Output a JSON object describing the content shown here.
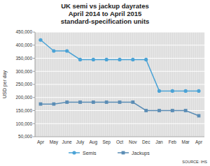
{
  "chart_data": {
    "type": "line",
    "title": "UK semi vs jackup dayrates",
    "subtitle": [
      "April 2014 to April 2015",
      "standard-specification units"
    ],
    "y_label": "USD per day",
    "annotations": [
      "SOURCE: IHS"
    ],
    "categories": [
      "Apr",
      "May",
      "June",
      "July",
      "Aug",
      "Sep",
      "Oct",
      "Nov",
      "Dec",
      "Jan",
      "Feb",
      "Mar",
      "Apr"
    ],
    "series": [
      {
        "name": "Semis",
        "color": "#4ba3d6",
        "marker": "circle",
        "values": [
          420000,
          378000,
          378000,
          345000,
          345000,
          345000,
          345000,
          345000,
          345000,
          225000,
          225000,
          225000,
          225000
        ]
      },
      {
        "name": "Jackups",
        "color": "#5b8db5",
        "marker": "square",
        "values": [
          175000,
          175000,
          182000,
          182000,
          182000,
          182000,
          182000,
          182000,
          150000,
          150000,
          150000,
          150000,
          130000
        ]
      }
    ],
    "ylim": [
      50000,
      450000
    ],
    "yticks": [
      {
        "value": 50000,
        "label": "50,000"
      },
      {
        "value": 100000,
        "label": "100,000"
      },
      {
        "value": 150000,
        "label": "150,000"
      },
      {
        "value": 200000,
        "label": "200,000"
      },
      {
        "value": 250000,
        "label": "250,000"
      },
      {
        "value": 300000,
        "label": "300,000"
      },
      {
        "value": 350000,
        "label": "350,000"
      },
      {
        "value": 400000,
        "label": "400,000"
      },
      {
        "value": 450000,
        "label": "450,000"
      }
    ],
    "grid": true,
    "legend": "bottom"
  }
}
